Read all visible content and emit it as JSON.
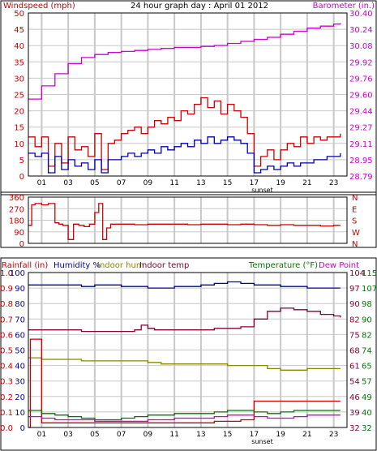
{
  "colors": {
    "red": "#cc0000",
    "blue": "#0000aa",
    "magenta": "#cc00cc",
    "green": "#007700",
    "olive": "#888800",
    "maroon": "#880033",
    "grid": "#c8c8c8",
    "axis": "#000000"
  },
  "chart_data": [
    {
      "type": "line",
      "title": "24 hour graph day : April 01 2012",
      "left_axis_label": "Windspeed (mph)",
      "right_axis_label": "Barometer (in.)",
      "x_ticks": [
        "01",
        "03",
        "05",
        "07",
        "09",
        "11",
        "13",
        "15",
        "17",
        "19",
        "21",
        "23"
      ],
      "x_annotation": "sunset",
      "x_annotation_hour": 17.25,
      "ylim_left": [
        0,
        50
      ],
      "y_ticks_left": [
        "0",
        "5",
        "10",
        "15",
        "20",
        "25",
        "30",
        "35",
        "40",
        "45",
        "50"
      ],
      "ylim_right": [
        28.79,
        30.4
      ],
      "y_ticks_right": [
        "28.79",
        "28.95",
        "29.11",
        "29.27",
        "29.44",
        "29.60",
        "29.76",
        "29.92",
        "30.08",
        "30.24",
        "30.40"
      ],
      "grid": true,
      "series": [
        {
          "color_key": "red",
          "axis": "left",
          "x": [
            0,
            0.5,
            1,
            1.5,
            2,
            2.5,
            3,
            3.5,
            4,
            4.5,
            5,
            5.5,
            6,
            6.5,
            7,
            7.5,
            8,
            8.5,
            9,
            9.5,
            10,
            10.5,
            11,
            11.5,
            12,
            12.5,
            13,
            13.5,
            14,
            14.5,
            15,
            15.5,
            16,
            16.5,
            17,
            17.5,
            18,
            18.5,
            19,
            19.5,
            20,
            20.5,
            21,
            21.5,
            22,
            22.5,
            23,
            23.5
          ],
          "values": [
            12,
            9,
            12,
            3,
            10,
            4,
            12,
            8,
            9,
            6,
            13,
            2,
            10,
            11,
            13,
            14,
            15,
            13,
            15,
            17,
            16,
            18,
            17,
            20,
            19,
            22,
            24,
            21,
            23,
            19,
            22,
            20,
            18,
            13,
            3,
            6,
            8,
            5,
            8,
            10,
            9,
            12,
            10,
            12,
            11,
            12,
            12,
            13
          ]
        },
        {
          "color_key": "blue",
          "axis": "left",
          "x": [
            0,
            0.5,
            1,
            1.5,
            2,
            2.5,
            3,
            3.5,
            4,
            4.5,
            5,
            5.5,
            6,
            6.5,
            7,
            7.5,
            8,
            8.5,
            9,
            9.5,
            10,
            10.5,
            11,
            11.5,
            12,
            12.5,
            13,
            13.5,
            14,
            14.5,
            15,
            15.5,
            16,
            16.5,
            17,
            17.5,
            18,
            18.5,
            19,
            19.5,
            20,
            20.5,
            21,
            21.5,
            22,
            22.5,
            23,
            23.5
          ],
          "values": [
            7,
            6,
            7,
            1,
            6,
            2,
            5,
            3,
            4,
            2,
            5,
            1,
            5,
            5,
            6,
            7,
            6,
            7,
            8,
            7,
            9,
            8,
            9,
            10,
            9,
            11,
            10,
            12,
            10,
            11,
            12,
            11,
            10,
            7,
            1,
            2,
            3,
            2,
            3,
            4,
            3,
            4,
            4,
            5,
            5,
            6,
            6,
            7
          ]
        },
        {
          "color_key": "magenta",
          "axis": "right",
          "x": [
            0,
            1,
            2,
            3,
            4,
            5,
            6,
            7,
            8,
            9,
            10,
            11,
            12,
            13,
            14,
            15,
            16,
            17,
            18,
            19,
            20,
            21,
            22,
            23,
            23.5
          ],
          "values": [
            29.55,
            29.68,
            29.8,
            29.9,
            29.96,
            29.99,
            30.01,
            30.02,
            30.03,
            30.04,
            30.05,
            30.06,
            30.06,
            30.07,
            30.08,
            30.1,
            30.12,
            30.14,
            30.16,
            30.19,
            30.22,
            30.25,
            30.27,
            30.29,
            30.3
          ]
        }
      ]
    },
    {
      "type": "line",
      "left_axis_label": "",
      "right_axis_label": "",
      "ylim_left": [
        0,
        360
      ],
      "y_ticks_left": [
        "0",
        "90",
        "180",
        "270",
        "360"
      ],
      "y_ticks_right": [
        "N",
        "W",
        "S",
        "E",
        "N"
      ],
      "series": [
        {
          "color_key": "red",
          "axis": "left",
          "x": [
            0,
            0.25,
            0.5,
            1,
            1.5,
            2,
            2.3,
            2.6,
            3,
            3.4,
            3.8,
            4.2,
            4.6,
            5,
            5.3,
            5.6,
            5.9,
            6.2,
            7,
            8,
            9,
            10,
            11,
            12,
            13,
            14,
            15,
            16,
            17,
            18,
            19,
            20,
            21,
            22,
            23,
            23.5
          ],
          "values": [
            140,
            300,
            310,
            300,
            310,
            160,
            150,
            140,
            30,
            150,
            140,
            130,
            150,
            240,
            310,
            30,
            120,
            150,
            150,
            145,
            150,
            150,
            150,
            145,
            150,
            150,
            145,
            150,
            145,
            140,
            145,
            140,
            140,
            135,
            140,
            140
          ]
        }
      ]
    },
    {
      "type": "line",
      "left_axis_label": "Rainfall (in)",
      "left_axis_label_2": "Humidity %",
      "middle_label_1": "Indoor hum",
      "middle_label_2": "Indoor temp",
      "right_axis_label": "Temperature (°F)",
      "right_axis_label_2": "Dew Point",
      "ylim_left": [
        0,
        100
      ],
      "y_ticks_rain": [
        "0.0",
        "0.1",
        "0.2",
        "0.3",
        "0.4",
        "0.5",
        "0.6",
        "0.7",
        "0.8",
        "0.9",
        "1.0"
      ],
      "y_ticks_hum": [
        "0",
        "10",
        "20",
        "30",
        "40",
        "50",
        "60",
        "70",
        "80",
        "90",
        "100"
      ],
      "ylim_right": [
        32,
        115
      ],
      "y_ticks_right_1": [
        "32",
        "40",
        "49",
        "57",
        "65",
        "74",
        "82",
        "90",
        "98",
        "107",
        "115"
      ],
      "y_ticks_right_2": [
        "32",
        "39",
        "46",
        "54",
        "61",
        "68",
        "75",
        "82",
        "90",
        "97",
        "104"
      ],
      "x_ticks": [
        "01",
        "03",
        "05",
        "07",
        "09",
        "11",
        "13",
        "15",
        "17",
        "19",
        "21",
        "23"
      ],
      "x_annotation": "sunset",
      "x_annotation_hour": 17.25,
      "series": [
        {
          "color_key": "blue",
          "name": "Humidity %",
          "axis": "left",
          "x": [
            0,
            1,
            2,
            3,
            4,
            5,
            6,
            7,
            8,
            9,
            10,
            11,
            12,
            13,
            14,
            15,
            16,
            17,
            18,
            19,
            20,
            21,
            22,
            23,
            23.5
          ],
          "values": [
            92,
            92,
            92,
            92,
            91,
            92,
            92,
            91,
            91,
            90,
            90,
            91,
            91,
            92,
            93,
            94,
            93,
            92,
            92,
            91,
            91,
            90,
            90,
            90,
            90
          ]
        },
        {
          "color_key": "maroon",
          "name": "Indoor temp",
          "axis": "left",
          "x": [
            0,
            2,
            4,
            6,
            8,
            8.5,
            9,
            9.5,
            10,
            12,
            14,
            15,
            16,
            17,
            18,
            19,
            20,
            21,
            22,
            23,
            23.5
          ],
          "values": [
            63,
            63,
            62,
            62,
            63,
            66,
            64,
            63,
            63,
            63,
            64,
            64,
            65,
            70,
            75,
            77,
            76,
            75,
            73,
            72,
            71
          ]
        },
        {
          "color_key": "olive",
          "name": "Indoor hum",
          "axis": "left",
          "x": [
            0,
            1,
            2,
            3,
            4,
            5,
            6,
            7,
            8,
            9,
            10,
            11,
            12,
            13,
            14,
            15,
            16,
            17,
            18,
            19,
            20,
            21,
            22,
            23,
            23.5
          ],
          "values": [
            45,
            44,
            44,
            44,
            43,
            43,
            43,
            43,
            43,
            42,
            41,
            41,
            41,
            41,
            41,
            40,
            40,
            40,
            38,
            37,
            37,
            38,
            38,
            38,
            38
          ]
        },
        {
          "color_key": "red",
          "name": "Rainfall",
          "axis": "left",
          "x": [
            0,
            0.15,
            0.15,
            1,
            4,
            8,
            12,
            14,
            16,
            17,
            17,
            23.5
          ],
          "values": [
            0,
            0,
            57,
            3,
            3,
            3,
            3,
            4,
            5,
            5,
            17,
            17
          ]
        },
        {
          "color_key": "green",
          "name": "Temperature",
          "axis": "left",
          "x": [
            0,
            1,
            2,
            3,
            4,
            5,
            6,
            7,
            8,
            9,
            10,
            11,
            12,
            13,
            14,
            15,
            16,
            17,
            18,
            19,
            20,
            21,
            22,
            23,
            23.5
          ],
          "values": [
            11,
            9,
            8,
            7,
            6,
            5,
            5,
            6,
            7,
            8,
            8,
            9,
            9,
            9,
            10,
            11,
            11,
            10,
            9,
            10,
            11,
            11,
            11,
            11,
            11
          ]
        },
        {
          "color_key": "magenta",
          "name": "Dew Point",
          "axis": "left",
          "x": [
            0,
            1,
            2,
            3,
            4,
            5,
            6,
            7,
            8,
            9,
            10,
            11,
            12,
            13,
            14,
            15,
            16,
            17,
            18,
            19,
            20,
            21,
            22,
            23,
            23.5
          ],
          "values": [
            7,
            6,
            5,
            5,
            5,
            4,
            4,
            4,
            4,
            5,
            5,
            6,
            6,
            6,
            7,
            8,
            8,
            7,
            6,
            6,
            7,
            8,
            8,
            8,
            8
          ]
        }
      ]
    }
  ]
}
